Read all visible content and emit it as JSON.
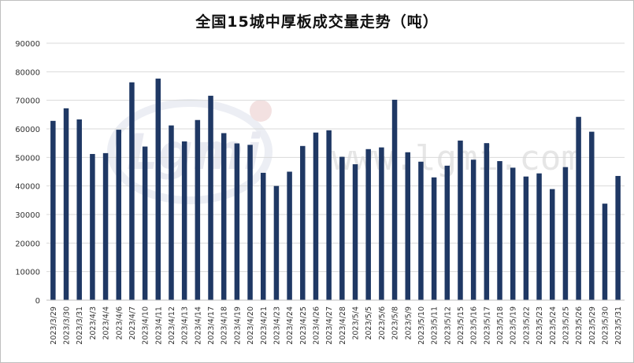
{
  "chart_data": {
    "type": "bar",
    "title": "全国15城中厚板成交量走势（吨）",
    "xlabel": "",
    "ylabel": "",
    "ylim": [
      0,
      90000
    ],
    "yticks": [
      0,
      10000,
      20000,
      30000,
      40000,
      50000,
      60000,
      70000,
      80000,
      90000
    ],
    "grid": true,
    "legend": "none",
    "bar_color": "#1f3864",
    "watermark": {
      "logo": "Lgmi",
      "text": "www.lgmi.com"
    },
    "categories": [
      "2023/3/29",
      "2023/3/30",
      "2023/3/31",
      "2023/4/3",
      "2023/4/4",
      "2023/4/6",
      "2023/4/7",
      "2023/4/10",
      "2023/4/11",
      "2023/4/12",
      "2023/4/13",
      "2023/4/14",
      "2023/4/17",
      "2023/4/18",
      "2023/4/19",
      "2023/4/20",
      "2023/4/21",
      "2023/4/23",
      "2023/4/24",
      "2023/4/25",
      "2023/4/26",
      "2023/4/27",
      "2023/4/28",
      "2023/5/4",
      "2023/5/5",
      "2023/5/6",
      "2023/5/8",
      "2023/5/9",
      "2023/5/10",
      "2023/5/11",
      "2023/5/12",
      "2023/5/15",
      "2023/5/16",
      "2023/5/17",
      "2023/5/18",
      "2023/5/19",
      "2023/5/22",
      "2023/5/23",
      "2023/5/24",
      "2023/5/25",
      "2023/5/26",
      "2023/5/29",
      "2023/5/30",
      "2023/5/31"
    ],
    "values": [
      62800,
      67200,
      63300,
      51200,
      51500,
      59700,
      76300,
      53800,
      77600,
      61200,
      55600,
      63100,
      71600,
      58500,
      54900,
      54400,
      44600,
      40000,
      45000,
      54000,
      58700,
      59500,
      50200,
      47600,
      52900,
      53500,
      70200,
      51800,
      48500,
      43000,
      47100,
      55900,
      49200,
      55000,
      48700,
      46400,
      43300,
      44400,
      38900,
      46600,
      64200,
      59000,
      33800,
      43500
    ]
  }
}
